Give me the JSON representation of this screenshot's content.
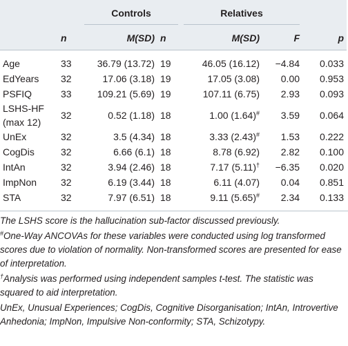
{
  "table": {
    "group_headers": [
      "Controls",
      "Relatives"
    ],
    "columns": [
      "n",
      "M(SD)",
      "n",
      "M(SD)",
      "F",
      "p"
    ],
    "rows": [
      [
        "Age",
        "33",
        "36.79 (13.72)",
        "19",
        "46.05 (16.12)",
        "−4.84",
        "0.033"
      ],
      [
        "EdYears",
        "32",
        "17.06 (3.18)",
        "19",
        "17.05 (3.08)",
        "0.00",
        "0.953"
      ],
      [
        "PSFIQ",
        "33",
        "109.21 (5.69)",
        "19",
        "107.11 (6.75)",
        "2.93",
        "0.093"
      ],
      [
        "LSHS-HF (max 12)",
        "32",
        "0.52 (1.18)",
        "18",
        {
          "text": "1.00 (1.64)",
          "sup": "#"
        },
        "3.59",
        "0.064"
      ],
      [
        "UnEx",
        "32",
        "3.5 (4.34)",
        "18",
        {
          "text": "3.33 (2.43)",
          "sup": "#"
        },
        "1.53",
        "0.222"
      ],
      [
        "CogDis",
        "32",
        "6.66 (6.1)",
        "18",
        "8.78 (6.92)",
        "2.82",
        "0.100"
      ],
      [
        "IntAn",
        "32",
        "3.94 (2.46)",
        "18",
        {
          "text": "7.17 (5.11)",
          "sup": "†"
        },
        "−6.35",
        "0.020"
      ],
      [
        "ImpNon",
        "32",
        "6.19 (3.44)",
        "18",
        "6.11 (4.07)",
        "0.04",
        "0.851"
      ],
      [
        "STA",
        "32",
        "7.97 (6.51)",
        "18",
        {
          "text": "9.11 (5.65)",
          "sup": "#"
        },
        "2.34",
        "0.133"
      ]
    ]
  },
  "notes": [
    {
      "text": "The LSHS score is the hallucination sub-factor discussed previously."
    },
    {
      "sup": "#",
      "text": "One-Way ANCOVAs for these variables were conducted using log transformed scores due to violation of normality. Non-transformed scores are presented for ease of interpretation."
    },
    {
      "sup": "†",
      "text": "Analysis was performed using independent samples t-test. The statistic was squared to aid interpretation."
    },
    {
      "text": "UnEx, Unusual Experiences; CogDis, Cognitive Disorganisation; IntAn, Introvertive Anhedonia; ImpNon, Impulsive Non-conformity; STA, Schizotypy."
    }
  ]
}
